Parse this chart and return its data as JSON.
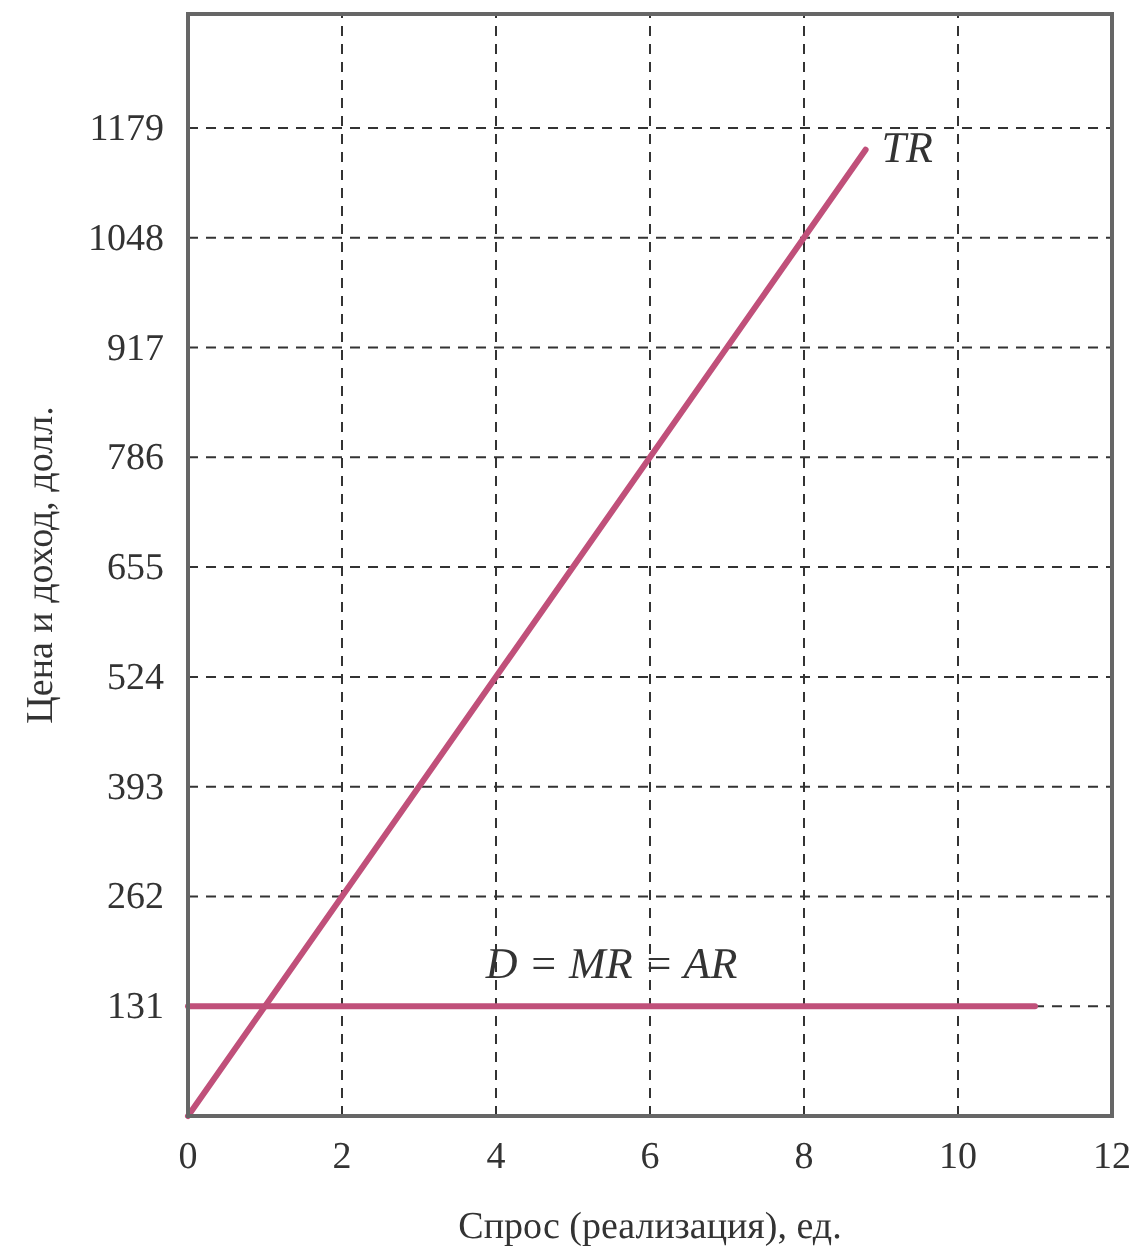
{
  "chart_data": {
    "type": "line",
    "xlabel": "Спрос (реализация), ед.",
    "ylabel": "Цена и доход, долл.",
    "series": [
      {
        "name": "TR",
        "color": "#c0507a",
        "x": [
          0,
          8.8
        ],
        "values": [
          0,
          1153
        ]
      },
      {
        "name": "D = MR = AR",
        "color": "#c0507a",
        "x": [
          0,
          11
        ],
        "values": [
          131,
          131
        ]
      }
    ],
    "xlim": [
      0,
      12
    ],
    "xticks": [
      0,
      2,
      4,
      6,
      8,
      10,
      12
    ],
    "ylim": [
      0,
      1315
    ],
    "yticks": [
      {
        "value": 0,
        "label": null
      },
      131,
      262,
      393,
      524,
      655,
      786,
      917,
      1048,
      1179
    ],
    "grid": true,
    "marker": "none",
    "line_style": "solid"
  }
}
